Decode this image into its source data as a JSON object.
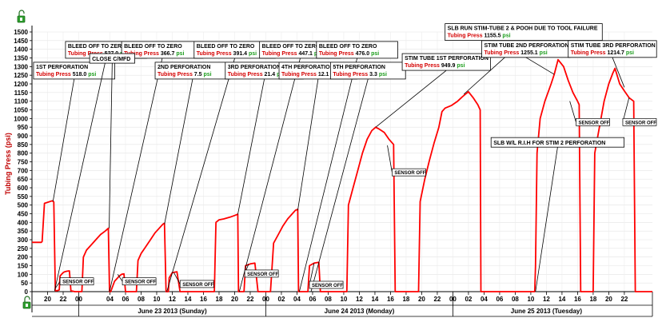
{
  "chart_data": {
    "type": "line",
    "ylabel": "Tubing Press (psi)",
    "ylim": [
      0,
      1500
    ],
    "yticks": [
      0,
      50,
      100,
      150,
      200,
      250,
      300,
      350,
      400,
      450,
      500,
      550,
      600,
      650,
      700,
      750,
      800,
      850,
      900,
      950,
      1000,
      1050,
      1100,
      1150,
      1200,
      1250,
      1300,
      1350,
      1400,
      1450,
      1500
    ],
    "xlim_hours": [
      -6,
      73.6
    ],
    "xticks": [
      {
        "h": -4,
        "label": "20"
      },
      {
        "h": -2,
        "label": "22"
      },
      {
        "h": 0,
        "label": "00"
      },
      {
        "h": 4,
        "label": "04"
      },
      {
        "h": 6,
        "label": "06"
      },
      {
        "h": 8,
        "label": "08"
      },
      {
        "h": 10,
        "label": "10"
      },
      {
        "h": 12,
        "label": "12"
      },
      {
        "h": 14,
        "label": "14"
      },
      {
        "h": 16,
        "label": "16"
      },
      {
        "h": 18,
        "label": "18"
      },
      {
        "h": 20,
        "label": "20"
      },
      {
        "h": 22,
        "label": "22"
      },
      {
        "h": 24,
        "label": "00"
      },
      {
        "h": 26,
        "label": "02"
      },
      {
        "h": 28,
        "label": "04"
      },
      {
        "h": 30,
        "label": "06"
      },
      {
        "h": 32,
        "label": "08"
      },
      {
        "h": 34,
        "label": "10"
      },
      {
        "h": 36,
        "label": "12"
      },
      {
        "h": 38,
        "label": "14"
      },
      {
        "h": 40,
        "label": "16"
      },
      {
        "h": 42,
        "label": "18"
      },
      {
        "h": 44,
        "label": "20"
      },
      {
        "h": 46,
        "label": "22"
      },
      {
        "h": 48,
        "label": "00"
      },
      {
        "h": 50,
        "label": "02"
      },
      {
        "h": 52,
        "label": "04"
      },
      {
        "h": 54,
        "label": "06"
      },
      {
        "h": 56,
        "label": "08"
      },
      {
        "h": 58,
        "label": "10"
      },
      {
        "h": 60,
        "label": "12"
      },
      {
        "h": 62,
        "label": "14"
      },
      {
        "h": 64,
        "label": "16"
      },
      {
        "h": 66,
        "label": "18"
      },
      {
        "h": 68,
        "label": "20"
      },
      {
        "h": 70,
        "label": "22"
      }
    ],
    "days": [
      {
        "label": "June 23 2013 (Sunday)",
        "center_h": 12
      },
      {
        "label": "June 24 2013 (Monday)",
        "center_h": 36
      },
      {
        "label": "June 25 2013 (Tuesday)",
        "center_h": 60
      }
    ],
    "day_boundaries_h": [
      0,
      24,
      48
    ],
    "series": [
      {
        "color": "#ff0000",
        "points": [
          [
            -6,
            285
          ],
          [
            -4.8,
            285
          ],
          [
            -4.7,
            290
          ],
          [
            -4.4,
            510
          ],
          [
            -3.4,
            525
          ],
          [
            -3.2,
            518
          ],
          [
            -3.0,
            5
          ],
          [
            -2.8,
            5
          ],
          [
            -2.5,
            10
          ],
          [
            -2.4,
            90
          ],
          [
            -2.2,
            100
          ],
          [
            -2.0,
            110
          ],
          [
            -1.8,
            115
          ],
          [
            -1.5,
            118
          ],
          [
            -1.2,
            120
          ],
          [
            -1.0,
            5
          ],
          [
            -0.5,
            0
          ],
          [
            0.4,
            0
          ],
          [
            0.6,
            200
          ],
          [
            1.0,
            240
          ],
          [
            1.6,
            270
          ],
          [
            2.2,
            300
          ],
          [
            2.8,
            330
          ],
          [
            3.4,
            350
          ],
          [
            3.8,
            366
          ],
          [
            3.95,
            0
          ],
          [
            4.1,
            0
          ],
          [
            4.6,
            60
          ],
          [
            5.2,
            90
          ],
          [
            5.5,
            100
          ],
          [
            5.8,
            103
          ],
          [
            6.0,
            0
          ],
          [
            7.4,
            0
          ],
          [
            7.6,
            180
          ],
          [
            8.0,
            220
          ],
          [
            8.6,
            260
          ],
          [
            9.2,
            300
          ],
          [
            9.8,
            340
          ],
          [
            10.4,
            370
          ],
          [
            10.8,
            390
          ],
          [
            11.0,
            395
          ],
          [
            11.2,
            0
          ],
          [
            11.5,
            0
          ],
          [
            11.6,
            80
          ],
          [
            12.0,
            110
          ],
          [
            12.6,
            115
          ],
          [
            13.0,
            0
          ],
          [
            17.4,
            0
          ],
          [
            17.6,
            400
          ],
          [
            18.0,
            415
          ],
          [
            18.6,
            420
          ],
          [
            19.4,
            430
          ],
          [
            20.0,
            440
          ],
          [
            20.4,
            447
          ],
          [
            20.5,
            0
          ],
          [
            21.2,
            0
          ],
          [
            21.4,
            150
          ],
          [
            22.0,
            160
          ],
          [
            22.6,
            165
          ],
          [
            23.0,
            0
          ],
          [
            24.6,
            0
          ],
          [
            25.0,
            280
          ],
          [
            25.6,
            330
          ],
          [
            26.2,
            380
          ],
          [
            26.8,
            420
          ],
          [
            27.4,
            450
          ],
          [
            27.8,
            470
          ],
          [
            28.1,
            476
          ],
          [
            28.2,
            0
          ],
          [
            29.4,
            0
          ],
          [
            29.6,
            150
          ],
          [
            30.2,
            165
          ],
          [
            30.8,
            170
          ],
          [
            31.0,
            0
          ],
          [
            34.4,
            0
          ],
          [
            34.6,
            500
          ],
          [
            35.2,
            600
          ],
          [
            35.8,
            700
          ],
          [
            36.4,
            800
          ],
          [
            37.0,
            880
          ],
          [
            37.6,
            930
          ],
          [
            38.1,
            950
          ],
          [
            38.5,
            940
          ],
          [
            39.2,
            920
          ],
          [
            39.8,
            880
          ],
          [
            40.4,
            850
          ],
          [
            40.6,
            0
          ],
          [
            43.6,
            0
          ],
          [
            43.8,
            520
          ],
          [
            44.4,
            650
          ],
          [
            45.0,
            760
          ],
          [
            45.6,
            860
          ],
          [
            46.2,
            950
          ],
          [
            46.6,
            1040
          ],
          [
            47.0,
            1060
          ],
          [
            47.8,
            1075
          ],
          [
            48.6,
            1100
          ],
          [
            49.2,
            1125
          ],
          [
            49.6,
            1140
          ],
          [
            50.0,
            1155
          ],
          [
            50.6,
            1120
          ],
          [
            51.2,
            1080
          ],
          [
            51.5,
            1050
          ],
          [
            51.6,
            0
          ],
          [
            58.5,
            0
          ],
          [
            58.6,
            150
          ],
          [
            58.8,
            800
          ],
          [
            59.2,
            1000
          ],
          [
            59.8,
            1100
          ],
          [
            60.6,
            1200
          ],
          [
            61.0,
            1255
          ],
          [
            61.5,
            1340
          ],
          [
            62.2,
            1300
          ],
          [
            62.8,
            1220
          ],
          [
            63.4,
            1150
          ],
          [
            64.0,
            1100
          ],
          [
            64.2,
            1080
          ],
          [
            64.4,
            0
          ],
          [
            66.0,
            0
          ],
          [
            66.2,
            800
          ],
          [
            66.8,
            950
          ],
          [
            67.4,
            1100
          ],
          [
            68.0,
            1200
          ],
          [
            68.5,
            1260
          ],
          [
            68.8,
            1290
          ],
          [
            69.4,
            1200
          ],
          [
            70.0,
            1160
          ],
          [
            70.6,
            1120
          ],
          [
            71.2,
            1100
          ],
          [
            71.4,
            0
          ],
          [
            73.6,
            0
          ]
        ]
      }
    ],
    "annotations": [
      {
        "type": "box",
        "title": "1ST PERFORATION",
        "label": "Tubing Press",
        "value": "518.0",
        "unit": "psi",
        "box_h": -5.8,
        "box_p": 1325,
        "tgt_h": -3.3,
        "tgt_p": 522
      },
      {
        "type": "box",
        "title": "BLEED OFF TO ZERO",
        "label": "Tubing Press",
        "value": "527.0",
        "unit": "psi",
        "box_h": -1.7,
        "box_p": 1445,
        "tgt_h": -3.1,
        "tgt_p": 5
      },
      {
        "type": "box",
        "title": "BLEED OFF TO ZERO",
        "label": "Tubing Press",
        "value": "366.7",
        "unit": "psi",
        "box_h": 5.5,
        "box_p": 1445,
        "tgt_h": 3.95,
        "tgt_p": 0
      },
      {
        "type": "plain",
        "title": "CLOSE C/MFD",
        "box_h": 1.4,
        "box_p": 1375,
        "tgt_h": 3.9,
        "tgt_p": 366
      },
      {
        "type": "box",
        "title": "2ND PERFORATION",
        "label": "Tubing Press",
        "value": "7.5",
        "unit": "psi",
        "box_h": 9.8,
        "box_p": 1325,
        "tgt_h": 11.0,
        "tgt_p": 390
      },
      {
        "type": "box",
        "title": "BLEED OFF TO ZERO",
        "label": "Tubing Press",
        "value": "391.4",
        "unit": "psi",
        "box_h": 14.8,
        "box_p": 1445,
        "tgt_h": 11.3,
        "tgt_p": 0
      },
      {
        "type": "box",
        "title": "3RD PERFORATION",
        "label": "Tubing Press",
        "value": "21.4",
        "unit": "psi",
        "box_h": 18.8,
        "box_p": 1325,
        "tgt_h": 20.4,
        "tgt_p": 445
      },
      {
        "type": "box",
        "title": "BLEED OFF TO ZERO",
        "label": "Tubing Press",
        "value": "447.1",
        "unit": "psi",
        "box_h": 23.2,
        "box_p": 1445,
        "tgt_h": 20.6,
        "tgt_p": 0
      },
      {
        "type": "box",
        "title": "4TH PERFORATION",
        "label": "Tubing Press",
        "value": "12.1",
        "unit": "psi",
        "box_h": 25.7,
        "box_p": 1325,
        "tgt_h": 28.1,
        "tgt_p": 470
      },
      {
        "type": "box",
        "title": "BLEED OFF TO ZERO",
        "label": "Tubing Press",
        "value": "476.0",
        "unit": "psi",
        "box_h": 30.5,
        "box_p": 1445,
        "tgt_h": 28.3,
        "tgt_p": 0
      },
      {
        "type": "box",
        "title": "5TH PERFORATION",
        "label": "Tubing Press",
        "value": "3.3",
        "unit": "psi",
        "box_h": 32.3,
        "box_p": 1325,
        "tgt_h": 29.8,
        "tgt_p": 0
      },
      {
        "type": "box",
        "title": "STIM TUBE 1ST PERFORATION",
        "label": "Tubing Press",
        "value": "949.9",
        "unit": "psi",
        "box_h": 41.5,
        "box_p": 1375,
        "tgt_h": 38.1,
        "tgt_p": 950
      },
      {
        "type": "box",
        "title": "SLB RUN STIM-TUBE 2 & POOH DUE TO TOOL FAILURE",
        "label": "Tubing Press",
        "value": "1155.5",
        "unit": "psi",
        "box_h": 47.0,
        "box_p": 1548,
        "tgt_h": 49.4,
        "tgt_p": 1140
      },
      {
        "type": "box",
        "title": "STIM TUBE 2ND PERFORATION",
        "label": "Tubing Press",
        "value": "1255.1",
        "unit": "psi",
        "box_h": 51.7,
        "box_p": 1450,
        "tgt_h": 61.0,
        "tgt_p": 1255
      },
      {
        "type": "box",
        "title": "STIM TUBE 3RD PERFORATION",
        "label": "Tubing Press",
        "value": "1214.7",
        "unit": "psi",
        "box_h": 62.8,
        "box_p": 1450,
        "tgt_h": 70.0,
        "tgt_p": 1180
      },
      {
        "type": "plain",
        "title": "SLB W/L R.I.H FOR STIM 2 PERFORATION",
        "box_h": 52.9,
        "box_p": 890,
        "tgt_h": 58.6,
        "tgt_p": 0
      },
      {
        "type": "sensor",
        "title": "SENSOR OFF",
        "box_h": -2.4,
        "box_p": 80,
        "tgt_h": -3.0,
        "tgt_p": 20
      },
      {
        "type": "sensor",
        "title": "SENSOR OFF",
        "box_h": 5.6,
        "box_p": 80,
        "tgt_h": 5.0,
        "tgt_p": 100
      },
      {
        "type": "sensor",
        "title": "SENSOR OFF",
        "box_h": 13.0,
        "box_p": 65,
        "tgt_h": 12.2,
        "tgt_p": 110
      },
      {
        "type": "sensor",
        "title": "SENSOR OFF",
        "box_h": 21.3,
        "box_p": 125,
        "tgt_h": 21.8,
        "tgt_p": 160
      },
      {
        "type": "sensor",
        "title": "SENSOR OFF",
        "box_h": 29.6,
        "box_p": 60,
        "tgt_h": 30.2,
        "tgt_p": 165
      },
      {
        "type": "sensor",
        "title": "SENSOR OFF",
        "box_h": 40.2,
        "box_p": 710,
        "tgt_h": 39.6,
        "tgt_p": 845
      },
      {
        "type": "sensor",
        "title": "SENSOR OFF",
        "box_h": 63.8,
        "box_p": 1000,
        "tgt_h": 63.0,
        "tgt_p": 1100
      },
      {
        "type": "sensor",
        "title": "SENSOR OFF",
        "box_h": 69.8,
        "box_p": 1000,
        "tgt_h": 70.6,
        "tgt_p": 1120
      }
    ]
  },
  "icons": {
    "top": "unlock-icon",
    "bottom": "unlock-icon"
  }
}
